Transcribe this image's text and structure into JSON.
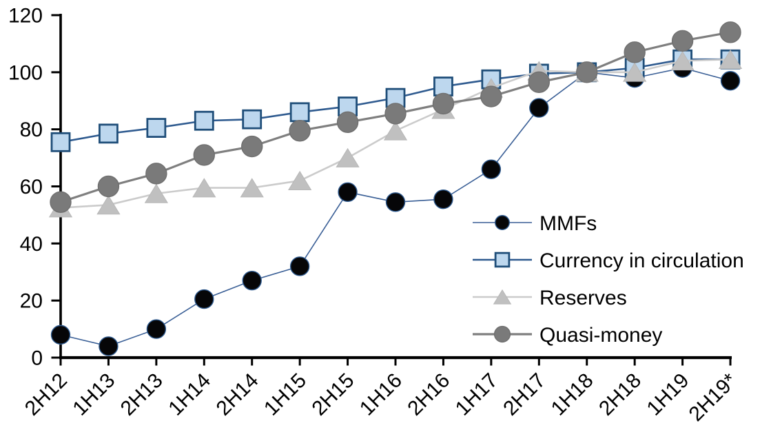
{
  "chart_data": {
    "type": "line",
    "title": "",
    "xlabel": "",
    "ylabel": "",
    "categories": [
      "2H12",
      "1H13",
      "2H13",
      "1H14",
      "2H14",
      "1H15",
      "2H15",
      "1H16",
      "2H16",
      "1H17",
      "2H17",
      "1H18",
      "2H18",
      "1H19",
      "2H19*"
    ],
    "series": [
      {
        "name": "MMFs",
        "marker": "circle",
        "marker_size": 27,
        "marker_fill": "#060608",
        "marker_stroke": "#2e5a8f",
        "line_color": "#3a5f96",
        "line_width": 1.6,
        "values": [
          8,
          4,
          10,
          20.5,
          27,
          32,
          58,
          54.5,
          55.5,
          66,
          87.5,
          100,
          98,
          101.5,
          97
        ]
      },
      {
        "name": "Currency in circulation",
        "marker": "square",
        "marker_size": 26,
        "marker_fill": "#bdd7ee",
        "marker_stroke": "#1f4e79",
        "line_color": "#2e5a8f",
        "line_width": 2.6,
        "values": [
          75.5,
          78.5,
          80.5,
          83,
          83.5,
          86,
          88,
          91,
          95,
          97.5,
          99.5,
          100,
          101.5,
          104.5,
          104.5
        ]
      },
      {
        "name": "Reserves",
        "marker": "triangle",
        "marker_size": 29,
        "marker_fill": "#c0c0c0",
        "marker_stroke": "#b7b7b7",
        "line_color": "#cbcbcb",
        "line_width": 2.6,
        "values": [
          52.5,
          53.5,
          57.5,
          59.5,
          59.5,
          62,
          70,
          79.5,
          87,
          94.5,
          100.5,
          100,
          100,
          104,
          104.5
        ]
      },
      {
        "name": "Quasi-money",
        "marker": "circle",
        "marker_size": 30,
        "marker_fill": "#7a7a7a",
        "marker_stroke": "#6f6f6f",
        "line_color": "#7f7f7f",
        "line_width": 3.2,
        "values": [
          54.5,
          60,
          64.5,
          71,
          74,
          79.5,
          82.5,
          85.5,
          89,
          91.5,
          96.5,
          100,
          107,
          111,
          114
        ]
      }
    ],
    "ylim": [
      0,
      120
    ],
    "yticks": [
      0,
      20,
      40,
      60,
      80,
      100,
      120
    ],
    "grid": false,
    "legend": {
      "position": "inside-right",
      "entries": [
        "MMFs",
        "Currency in circulation",
        "Reserves",
        "Quasi-money"
      ]
    },
    "axis_color": "#000000",
    "text_color": "#000000",
    "background": "#ffffff"
  }
}
